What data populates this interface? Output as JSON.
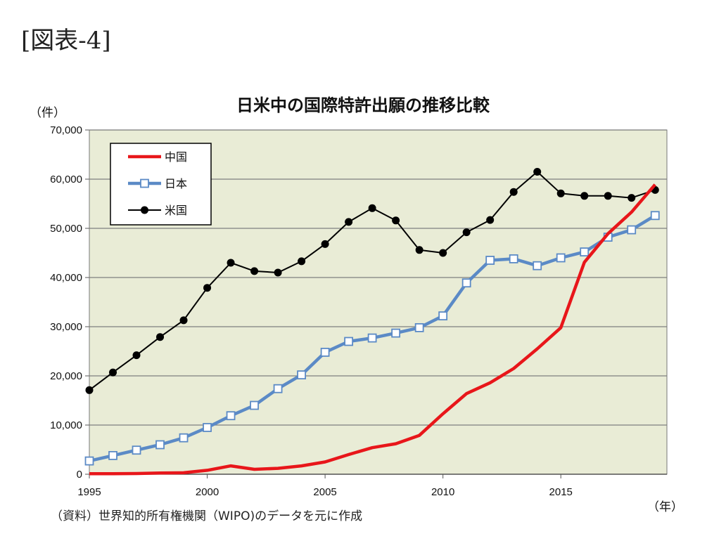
{
  "figure_label": "[図表-4]",
  "source_note": "（資料）世界知的所有権機関（WIPO)のデータを元に作成",
  "colors": {
    "china": "#e8161a",
    "japan": "#5b8ac6",
    "usa": "#000000",
    "plot_bg": "#e9ecd6",
    "grid": "#7f7f7f"
  },
  "chart_data": {
    "type": "line",
    "title": "日米中の国際特許出願の推移比較",
    "ylabel": "（件）",
    "xlabel": "（年）",
    "xlim": [
      1995,
      2019.5
    ],
    "ylim": [
      0,
      70000
    ],
    "y_ticks": [
      0,
      10000,
      20000,
      30000,
      40000,
      50000,
      60000,
      70000
    ],
    "y_tick_labels": [
      "0",
      "10,000",
      "20,000",
      "30,000",
      "40,000",
      "50,000",
      "60,000",
      "70,000"
    ],
    "x_ticks": [
      1995,
      2000,
      2005,
      2010,
      2015
    ],
    "x_tick_labels": [
      "1995",
      "2000",
      "2005",
      "2010",
      "2015"
    ],
    "grid": true,
    "legend_position": "top-left",
    "x": [
      1995,
      1996,
      1997,
      1998,
      1999,
      2000,
      2001,
      2002,
      2003,
      2004,
      2005,
      2006,
      2007,
      2008,
      2009,
      2010,
      2011,
      2012,
      2013,
      2014,
      2015,
      2016,
      2017,
      2018,
      2019
    ],
    "series": [
      {
        "name": "中国",
        "key": "china",
        "marker": "none",
        "values": [
          100,
          100,
          150,
          250,
          300,
          800,
          1700,
          1000,
          1200,
          1700,
          2500,
          4000,
          5400,
          6200,
          7900,
          12300,
          16400,
          18600,
          21500,
          25500,
          29800,
          43100,
          48900,
          53300,
          58900
        ]
      },
      {
        "name": "日本",
        "key": "japan",
        "marker": "square",
        "values": [
          2700,
          3800,
          4900,
          6000,
          7400,
          9500,
          11900,
          14000,
          17400,
          20200,
          24800,
          27000,
          27700,
          28700,
          29800,
          32200,
          38900,
          43500,
          43800,
          42400,
          44000,
          45200,
          48200,
          49700,
          52600
        ]
      },
      {
        "name": "米国",
        "key": "usa",
        "marker": "circle",
        "values": [
          17100,
          20700,
          24200,
          27900,
          31300,
          37900,
          43000,
          41300,
          41000,
          43300,
          46800,
          51300,
          54100,
          51600,
          45600,
          45000,
          49200,
          51700,
          57400,
          61500,
          57100,
          56600,
          56600,
          56200,
          57800
        ]
      }
    ]
  }
}
